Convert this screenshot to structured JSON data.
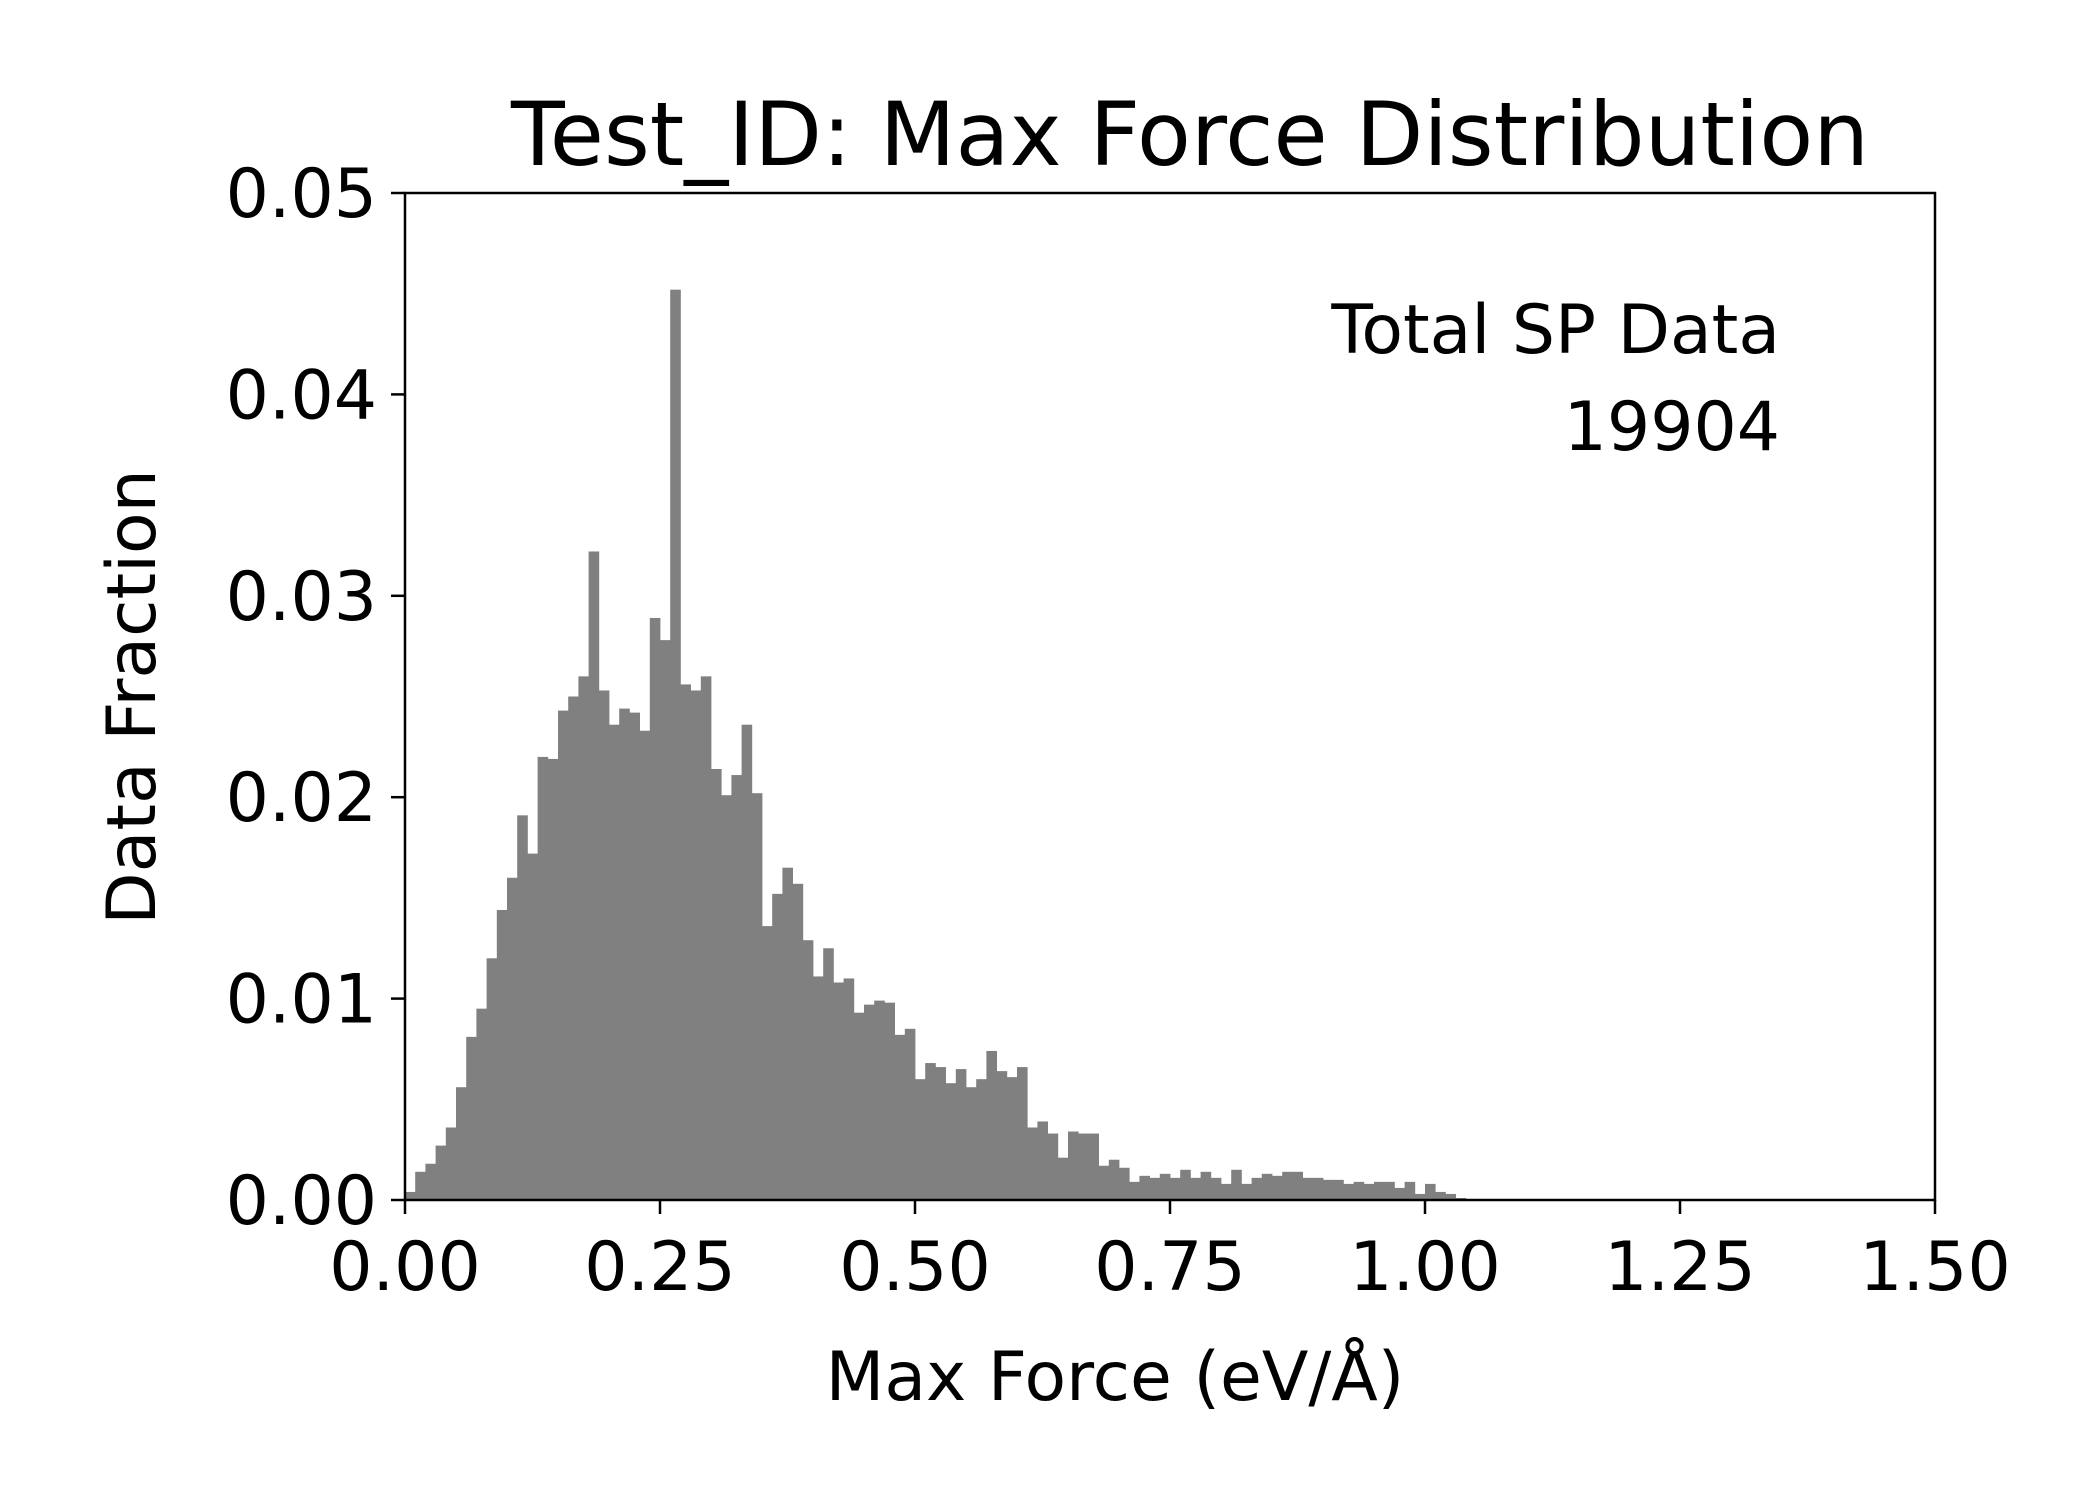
{
  "chart_data": {
    "type": "bar",
    "title": "Test_ID: Max Force Distribution",
    "xlabel": "Max Force (eV/Å)",
    "ylabel": "Data Fraction",
    "xlim": [
      0,
      1.5
    ],
    "ylim": [
      0,
      0.05
    ],
    "xticks": [
      "0.00",
      "0.25",
      "0.50",
      "0.75",
      "1.00",
      "1.25",
      "1.50"
    ],
    "yticks": [
      "0.00",
      "0.01",
      "0.02",
      "0.03",
      "0.04",
      "0.05"
    ],
    "grid": false,
    "bar_color": "#808080",
    "bin_width": 0.01,
    "bin_start": 0,
    "values": [
      0.0004,
      0.0014,
      0.0018,
      0.0027,
      0.0036,
      0.0056,
      0.0081,
      0.0095,
      0.012,
      0.0144,
      0.016,
      0.0191,
      0.0172,
      0.022,
      0.0219,
      0.0243,
      0.025,
      0.026,
      0.0322,
      0.0253,
      0.0236,
      0.0244,
      0.0242,
      0.0233,
      0.0289,
      0.0278,
      0.0452,
      0.0256,
      0.0253,
      0.026,
      0.0214,
      0.0201,
      0.0211,
      0.0236,
      0.0202,
      0.0136,
      0.0152,
      0.0165,
      0.0157,
      0.0129,
      0.0111,
      0.0125,
      0.0108,
      0.011,
      0.0093,
      0.0097,
      0.0099,
      0.0098,
      0.0082,
      0.0085,
      0.006,
      0.0068,
      0.0066,
      0.0058,
      0.0065,
      0.0056,
      0.006,
      0.0074,
      0.0064,
      0.0061,
      0.0066,
      0.0036,
      0.0039,
      0.0033,
      0.0021,
      0.0034,
      0.0033,
      0.0033,
      0.0017,
      0.002,
      0.0016,
      0.0009,
      0.0012,
      0.0011,
      0.0013,
      0.0011,
      0.0015,
      0.0011,
      0.0014,
      0.0011,
      0.0008,
      0.0015,
      0.0008,
      0.0011,
      0.0013,
      0.0012,
      0.0014,
      0.0014,
      0.0011,
      0.0011,
      0.001,
      0.001,
      0.0008,
      0.0009,
      0.0008,
      0.0009,
      0.0009,
      0.0006,
      0.0009,
      0.0003,
      0.0008,
      0.0004,
      0.0003,
      0.0001
    ],
    "annotation": {
      "line1": "Total SP Data",
      "line2": "19904",
      "placement": "top-right"
    }
  }
}
